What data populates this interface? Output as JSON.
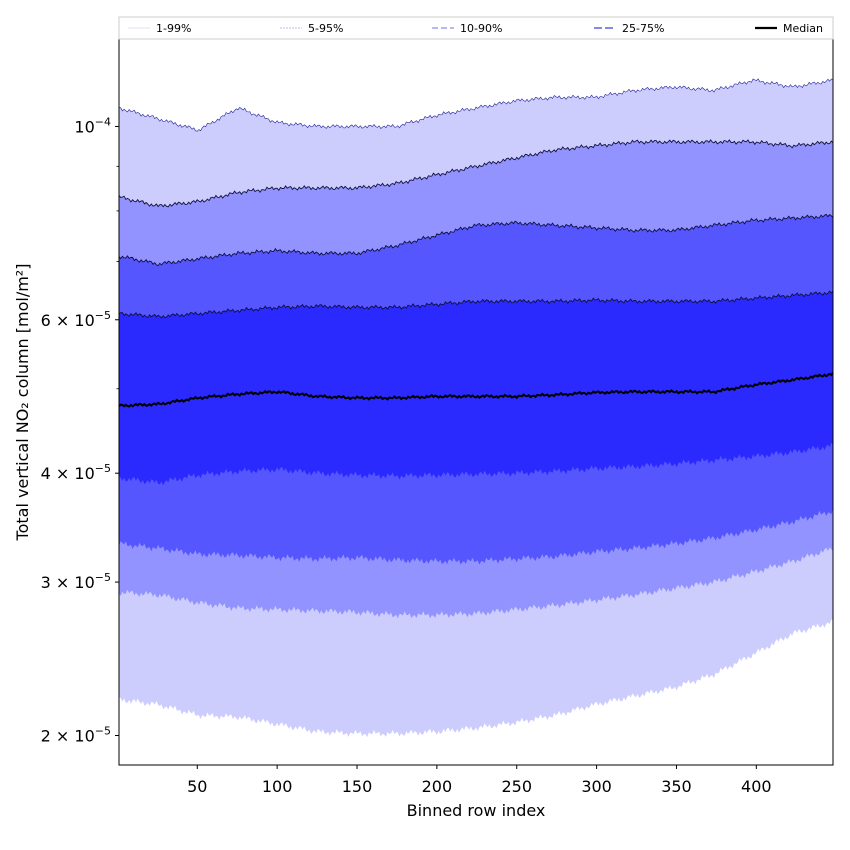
{
  "chart_data": {
    "type": "area",
    "title": "",
    "xlabel": "Binned row index",
    "ylabel": "Total vertical NO₂ column [mol/m²]",
    "y_scale": "log",
    "xlim": [
      1,
      448
    ],
    "ylim": [
      1.85e-05,
      0.000126
    ],
    "x_ticks": [
      50,
      100,
      150,
      200,
      250,
      300,
      350,
      400
    ],
    "x_tick_labels": [
      "50",
      "100",
      "150",
      "200",
      "250",
      "300",
      "350",
      "400"
    ],
    "y_ticks": [
      {
        "value": 2e-05,
        "mantissa": "2",
        "exponent": "−5"
      },
      {
        "value": 3e-05,
        "mantissa": "3",
        "exponent": "−5"
      },
      {
        "value": 4e-05,
        "mantissa": "4",
        "exponent": "−5"
      },
      {
        "value": 6e-05,
        "mantissa": "6",
        "exponent": "−5"
      },
      {
        "value": 0.0001,
        "mantissa": "",
        "exponent": "−4"
      }
    ],
    "grid": false,
    "legend_position": "top, above plot, single row",
    "x": [
      1,
      25,
      50,
      75,
      100,
      125,
      150,
      175,
      200,
      225,
      250,
      275,
      300,
      325,
      350,
      375,
      400,
      425,
      448
    ],
    "bands": [
      {
        "name": "1-99%",
        "color": "#cccdfd",
        "lower": [
          2.2e-05,
          2.17e-05,
          2.11e-05,
          2.1e-05,
          2.06e-05,
          2.02e-05,
          2.01e-05,
          2.01e-05,
          2.02e-05,
          2.04e-05,
          2.07e-05,
          2.11e-05,
          2.17e-05,
          2.22e-05,
          2.27e-05,
          2.35e-05,
          2.48e-05,
          2.62e-05,
          2.7e-05
        ],
        "upper": [
          0.000105,
          0.000102,
          9.9e-05,
          0.000105,
          0.000101,
          0.0001,
          0.0001,
          0.0001,
          0.000103,
          0.000105,
          0.000107,
          0.000108,
          0.000108,
          0.00011,
          0.000111,
          0.00011,
          0.000113,
          0.000111,
          0.000113
        ]
      },
      {
        "name": "5-95%",
        "color": "#9293fe",
        "lower": [
          2.92e-05,
          2.9e-05,
          2.84e-05,
          2.8e-05,
          2.79e-05,
          2.78e-05,
          2.77e-05,
          2.75e-05,
          2.75e-05,
          2.76e-05,
          2.79e-05,
          2.82e-05,
          2.86e-05,
          2.9e-05,
          2.95e-05,
          3e-05,
          3.08e-05,
          3.17e-05,
          3.28e-05
        ],
        "upper": [
          8.3e-05,
          8.1e-05,
          8.2e-05,
          8.4e-05,
          8.5e-05,
          8.5e-05,
          8.5e-05,
          8.6e-05,
          8.8e-05,
          9e-05,
          9.2e-05,
          9.4e-05,
          9.5e-05,
          9.6e-05,
          9.6e-05,
          9.6e-05,
          9.6e-05,
          9.5e-05,
          9.6e-05
        ]
      },
      {
        "name": "10-90%",
        "color": "#5556fe",
        "lower": [
          3.32e-05,
          3.28e-05,
          3.23e-05,
          3.22e-05,
          3.2e-05,
          3.19e-05,
          3.2e-05,
          3.18e-05,
          3.17e-05,
          3.17e-05,
          3.19e-05,
          3.21e-05,
          3.25e-05,
          3.28e-05,
          3.32e-05,
          3.37e-05,
          3.44e-05,
          3.52e-05,
          3.62e-05
        ],
        "upper": [
          7.1e-05,
          6.95e-05,
          7.05e-05,
          7.15e-05,
          7.2e-05,
          7.15e-05,
          7.15e-05,
          7.3e-05,
          7.5e-05,
          7.7e-05,
          7.75e-05,
          7.7e-05,
          7.65e-05,
          7.6e-05,
          7.6e-05,
          7.7e-05,
          7.8e-05,
          7.85e-05,
          7.9e-05
        ]
      },
      {
        "name": "25-75%",
        "color": "#2a2afe",
        "lower": [
          3.95e-05,
          3.9e-05,
          3.98e-05,
          4.02e-05,
          4.04e-05,
          4e-05,
          3.98e-05,
          3.97e-05,
          3.98e-05,
          3.99e-05,
          4e-05,
          4.02e-05,
          4.05e-05,
          4.07e-05,
          4.1e-05,
          4.14e-05,
          4.18e-05,
          4.23e-05,
          4.3e-05
        ],
        "upper": [
          6.1e-05,
          6.05e-05,
          6.1e-05,
          6.15e-05,
          6.2e-05,
          6.22e-05,
          6.2e-05,
          6.2e-05,
          6.25e-05,
          6.3e-05,
          6.3e-05,
          6.3e-05,
          6.32e-05,
          6.3e-05,
          6.3e-05,
          6.3e-05,
          6.35e-05,
          6.4e-05,
          6.45e-05
        ]
      }
    ],
    "median": {
      "name": "Median",
      "color": "#000000",
      "values": [
        4.78e-05,
        4.8e-05,
        4.88e-05,
        4.93e-05,
        4.96e-05,
        4.9e-05,
        4.88e-05,
        4.88e-05,
        4.9e-05,
        4.9e-05,
        4.9e-05,
        4.92e-05,
        4.95e-05,
        4.96e-05,
        4.96e-05,
        4.96e-05,
        5.05e-05,
        5.12e-05,
        5.2e-05
      ]
    },
    "legend": [
      {
        "label": "1-99%",
        "color": "#d8d8fa",
        "dash": "solid",
        "width": 0.8
      },
      {
        "label": "5-95%",
        "color": "#a8a8f0",
        "dash": "2,1",
        "width": 0.8
      },
      {
        "label": "10-90%",
        "color": "#8c8cf2",
        "dash": "6,3",
        "width": 1.2
      },
      {
        "label": "25-75%",
        "color": "#6060e0",
        "dash": "8,3",
        "width": 1.4
      },
      {
        "label": "Median",
        "color": "#000000",
        "dash": "solid",
        "width": 2.2
      }
    ]
  }
}
